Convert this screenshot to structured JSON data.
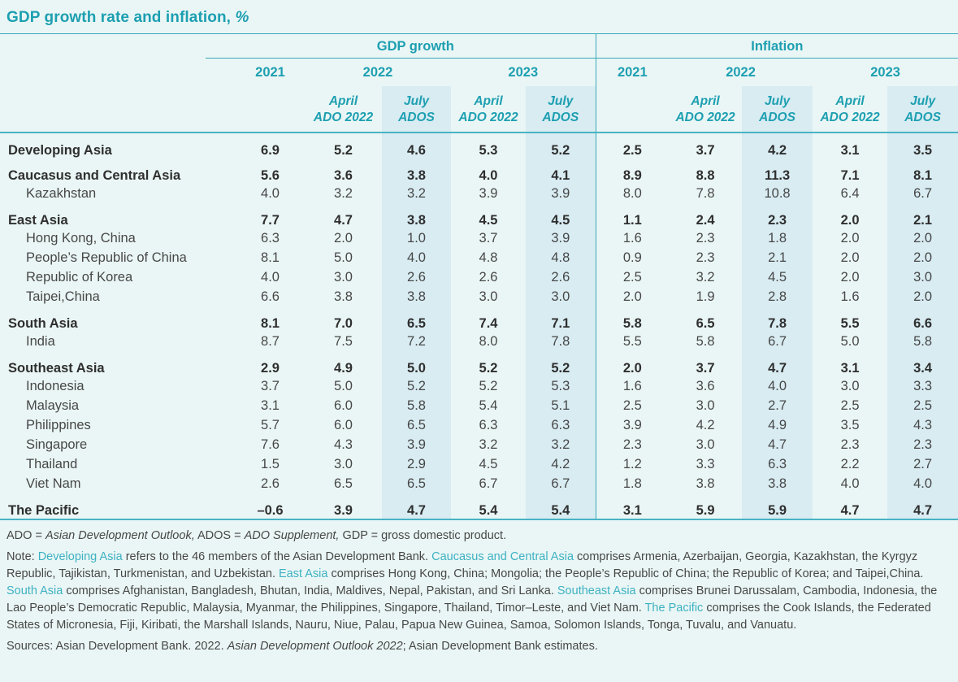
{
  "colors": {
    "bg": "#eaf6f5",
    "hl": "#d8ecf2",
    "teal": "#1d9fb1",
    "note-teal": "#3eb1c2",
    "line": "#3aa8ba",
    "line2": "#49b3c3",
    "text-dark": "#2f2f2f",
    "text-body": "#474747"
  },
  "title": {
    "main": "GDP growth rate and inflation, ",
    "pct": "%"
  },
  "table": {
    "group_headers": {
      "gdp": "GDP growth",
      "inflation": "Inflation"
    },
    "years": [
      "2021",
      "2022",
      "2023"
    ],
    "subheaders": {
      "april_line1": "April",
      "april_line2": "ADO 2022",
      "july_line1": "July",
      "july_line2": "ADOS"
    },
    "rows": [
      {
        "label": "Developing Asia",
        "bold": true,
        "indent": false,
        "gdp": [
          "6.9",
          "5.2",
          "4.6",
          "5.3",
          "5.2"
        ],
        "inflation": [
          "2.5",
          "3.7",
          "4.2",
          "3.1",
          "3.5"
        ]
      },
      {
        "label": "Caucasus and Central Asia",
        "bold": true,
        "indent": false,
        "gdp": [
          "5.6",
          "3.6",
          "3.8",
          "4.0",
          "4.1"
        ],
        "inflation": [
          "8.9",
          "8.8",
          "11.3",
          "7.1",
          "8.1"
        ]
      },
      {
        "label": "Kazakhstan",
        "bold": false,
        "indent": true,
        "gdp": [
          "4.0",
          "3.2",
          "3.2",
          "3.9",
          "3.9"
        ],
        "inflation": [
          "8.0",
          "7.8",
          "10.8",
          "6.4",
          "6.7"
        ]
      },
      {
        "label": "East Asia",
        "bold": true,
        "indent": false,
        "gdp": [
          "7.7",
          "4.7",
          "3.8",
          "4.5",
          "4.5"
        ],
        "inflation": [
          "1.1",
          "2.4",
          "2.3",
          "2.0",
          "2.1"
        ]
      },
      {
        "label": "Hong Kong, China",
        "bold": false,
        "indent": true,
        "gdp": [
          "6.3",
          "2.0",
          "1.0",
          "3.7",
          "3.9"
        ],
        "inflation": [
          "1.6",
          "2.3",
          "1.8",
          "2.0",
          "2.0"
        ]
      },
      {
        "label": "People’s Republic of China",
        "bold": false,
        "indent": true,
        "gdp": [
          "8.1",
          "5.0",
          "4.0",
          "4.8",
          "4.8"
        ],
        "inflation": [
          "0.9",
          "2.3",
          "2.1",
          "2.0",
          "2.0"
        ]
      },
      {
        "label": "Republic of Korea",
        "bold": false,
        "indent": true,
        "gdp": [
          "4.0",
          "3.0",
          "2.6",
          "2.6",
          "2.6"
        ],
        "inflation": [
          "2.5",
          "3.2",
          "4.5",
          "2.0",
          "3.0"
        ]
      },
      {
        "label": "Taipei,China",
        "bold": false,
        "indent": true,
        "gdp": [
          "6.6",
          "3.8",
          "3.8",
          "3.0",
          "3.0"
        ],
        "inflation": [
          "2.0",
          "1.9",
          "2.8",
          "1.6",
          "2.0"
        ]
      },
      {
        "label": "South Asia",
        "bold": true,
        "indent": false,
        "gdp": [
          "8.1",
          "7.0",
          "6.5",
          "7.4",
          "7.1"
        ],
        "inflation": [
          "5.8",
          "6.5",
          "7.8",
          "5.5",
          "6.6"
        ]
      },
      {
        "label": "India",
        "bold": false,
        "indent": true,
        "gdp": [
          "8.7",
          "7.5",
          "7.2",
          "8.0",
          "7.8"
        ],
        "inflation": [
          "5.5",
          "5.8",
          "6.7",
          "5.0",
          "5.8"
        ]
      },
      {
        "label": "Southeast Asia",
        "bold": true,
        "indent": false,
        "gdp": [
          "2.9",
          "4.9",
          "5.0",
          "5.2",
          "5.2"
        ],
        "inflation": [
          "2.0",
          "3.7",
          "4.7",
          "3.1",
          "3.4"
        ]
      },
      {
        "label": "Indonesia",
        "bold": false,
        "indent": true,
        "gdp": [
          "3.7",
          "5.0",
          "5.2",
          "5.2",
          "5.3"
        ],
        "inflation": [
          "1.6",
          "3.6",
          "4.0",
          "3.0",
          "3.3"
        ]
      },
      {
        "label": "Malaysia",
        "bold": false,
        "indent": true,
        "gdp": [
          "3.1",
          "6.0",
          "5.8",
          "5.4",
          "5.1"
        ],
        "inflation": [
          "2.5",
          "3.0",
          "2.7",
          "2.5",
          "2.5"
        ]
      },
      {
        "label": "Philippines",
        "bold": false,
        "indent": true,
        "gdp": [
          "5.7",
          "6.0",
          "6.5",
          "6.3",
          "6.3"
        ],
        "inflation": [
          "3.9",
          "4.2",
          "4.9",
          "3.5",
          "4.3"
        ]
      },
      {
        "label": "Singapore",
        "bold": false,
        "indent": true,
        "gdp": [
          "7.6",
          "4.3",
          "3.9",
          "3.2",
          "3.2"
        ],
        "inflation": [
          "2.3",
          "3.0",
          "4.7",
          "2.3",
          "2.3"
        ]
      },
      {
        "label": "Thailand",
        "bold": false,
        "indent": true,
        "gdp": [
          "1.5",
          "3.0",
          "2.9",
          "4.5",
          "4.2"
        ],
        "inflation": [
          "1.2",
          "3.3",
          "6.3",
          "2.2",
          "2.7"
        ]
      },
      {
        "label": "Viet Nam",
        "bold": false,
        "indent": true,
        "gdp": [
          "2.6",
          "6.5",
          "6.5",
          "6.7",
          "6.7"
        ],
        "inflation": [
          "1.8",
          "3.8",
          "3.8",
          "4.0",
          "4.0"
        ]
      },
      {
        "label": "The Pacific",
        "bold": true,
        "indent": false,
        "gdp": [
          "–0.6",
          "3.9",
          "4.7",
          "5.4",
          "5.4"
        ],
        "inflation": [
          "3.1",
          "5.9",
          "5.9",
          "4.7",
          "4.7"
        ]
      }
    ]
  },
  "notes": {
    "abbrev": [
      {
        "t": "ADO = "
      },
      {
        "t": "Asian Development Outlook,",
        "s": "italic"
      },
      {
        "t": " ADOS = "
      },
      {
        "t": "ADO Supplement,",
        "s": "italic"
      },
      {
        "t": " GDP = gross domestic product."
      }
    ],
    "definition": [
      {
        "t": "Note: "
      },
      {
        "t": "Developing Asia",
        "s": "teal"
      },
      {
        "t": " refers to the 46 members of the Asian Development Bank. "
      },
      {
        "t": "Caucasus and Central Asia",
        "s": "teal"
      },
      {
        "t": " comprises Armenia, Azerbaijan, Georgia, Kazakhstan, the Kyrgyz Republic, Tajikistan, Turkmenistan, and Uzbekistan. "
      },
      {
        "t": "East Asia",
        "s": "teal"
      },
      {
        "t": " comprises Hong Kong, China; Mongolia; the People’s Republic of China; the Republic of Korea; and Taipei,China. "
      },
      {
        "t": "South Asia",
        "s": "teal"
      },
      {
        "t": " comprises Afghanistan, Bangladesh, Bhutan, India, Maldives, Nepal, Pakistan, and Sri Lanka. "
      },
      {
        "t": "Southeast Asia",
        "s": "teal"
      },
      {
        "t": " comprises Brunei Darussalam, Cambodia, Indonesia, the Lao People’s Democratic Republic, Malaysia, Myanmar, the Philippines, Singapore, Thailand, Timor–Leste, and Viet Nam. "
      },
      {
        "t": "The Pacific",
        "s": "teal"
      },
      {
        "t": " comprises the Cook Islands, the Federated States of Micronesia, Fiji, Kiribati, the Marshall Islands, Nauru, Niue, Palau, Papua New Guinea, Samoa, Solomon Islands, Tonga, Tuvalu, and Vanuatu."
      }
    ],
    "sources": [
      {
        "t": "Sources: Asian Development Bank. 2022. "
      },
      {
        "t": "Asian Development Outlook 2022",
        "s": "italic"
      },
      {
        "t": "; Asian Development Bank estimates."
      }
    ]
  }
}
